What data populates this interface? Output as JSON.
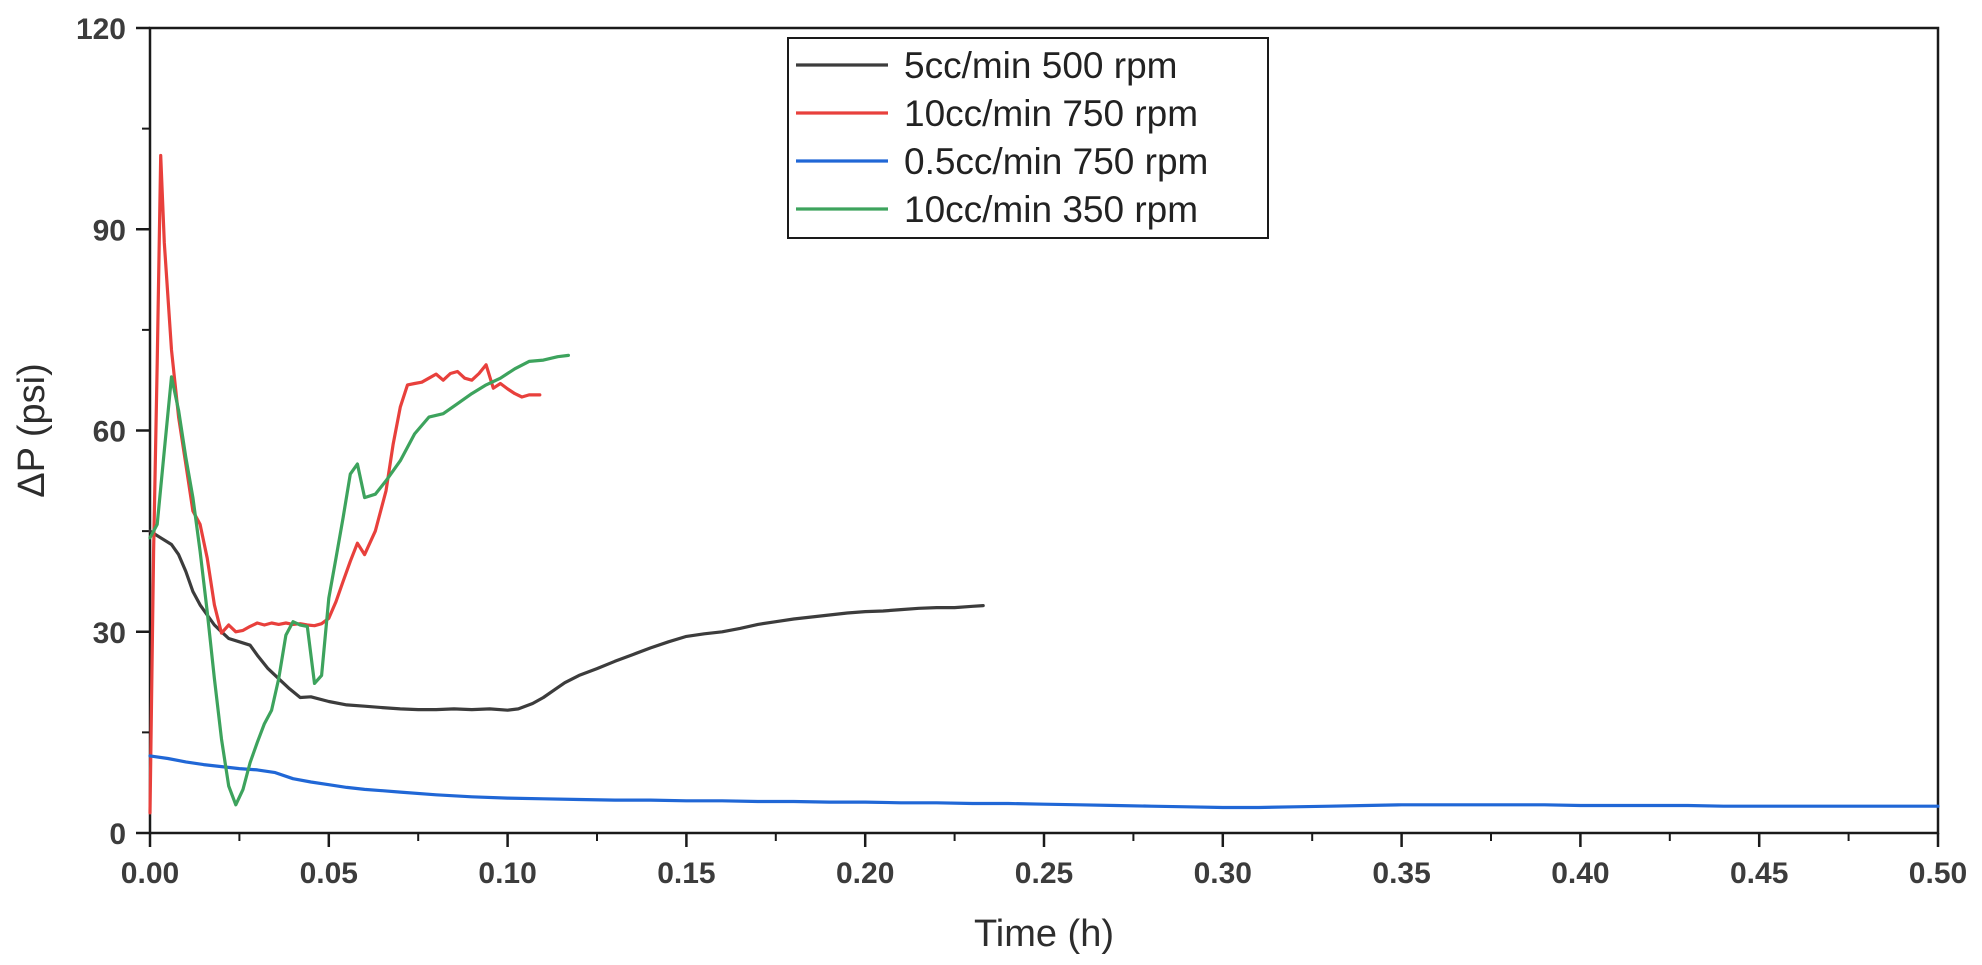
{
  "chart_data": {
    "type": "line",
    "title": "",
    "xlabel": "Time (h)",
    "ylabel": "ΔP (psi)",
    "xlim": [
      0,
      0.5
    ],
    "ylim": [
      0,
      120
    ],
    "x_ticks": [
      "0.00",
      "0.05",
      "0.10",
      "0.15",
      "0.20",
      "0.25",
      "0.30",
      "0.35",
      "0.40",
      "0.45",
      "0.50"
    ],
    "y_ticks": [
      "0",
      "30",
      "60",
      "90",
      "120"
    ],
    "grid": false,
    "legend_position": "top-center",
    "series": [
      {
        "name": "5cc/min 500 rpm",
        "color": "#3c3c3c",
        "points": [
          [
            0.0,
            45
          ],
          [
            0.003,
            44
          ],
          [
            0.006,
            43
          ],
          [
            0.008,
            41.5
          ],
          [
            0.01,
            39
          ],
          [
            0.012,
            36
          ],
          [
            0.014,
            34
          ],
          [
            0.016,
            32.5
          ],
          [
            0.018,
            31
          ],
          [
            0.02,
            30
          ],
          [
            0.022,
            29
          ],
          [
            0.025,
            28.5
          ],
          [
            0.028,
            28
          ],
          [
            0.03,
            26.5
          ],
          [
            0.033,
            24.5
          ],
          [
            0.036,
            23
          ],
          [
            0.039,
            21.5
          ],
          [
            0.042,
            20.2
          ],
          [
            0.045,
            20.3
          ],
          [
            0.05,
            19.6
          ],
          [
            0.055,
            19.1
          ],
          [
            0.06,
            18.9
          ],
          [
            0.065,
            18.7
          ],
          [
            0.07,
            18.5
          ],
          [
            0.075,
            18.4
          ],
          [
            0.08,
            18.4
          ],
          [
            0.085,
            18.5
          ],
          [
            0.09,
            18.4
          ],
          [
            0.095,
            18.5
          ],
          [
            0.1,
            18.3
          ],
          [
            0.103,
            18.5
          ],
          [
            0.107,
            19.3
          ],
          [
            0.11,
            20.2
          ],
          [
            0.113,
            21.3
          ],
          [
            0.116,
            22.4
          ],
          [
            0.12,
            23.5
          ],
          [
            0.125,
            24.5
          ],
          [
            0.13,
            25.6
          ],
          [
            0.135,
            26.6
          ],
          [
            0.14,
            27.6
          ],
          [
            0.145,
            28.5
          ],
          [
            0.15,
            29.3
          ],
          [
            0.155,
            29.7
          ],
          [
            0.16,
            30.0
          ],
          [
            0.165,
            30.5
          ],
          [
            0.17,
            31.1
          ],
          [
            0.175,
            31.5
          ],
          [
            0.18,
            31.9
          ],
          [
            0.185,
            32.2
          ],
          [
            0.19,
            32.5
          ],
          [
            0.195,
            32.8
          ],
          [
            0.2,
            33.0
          ],
          [
            0.205,
            33.1
          ],
          [
            0.21,
            33.3
          ],
          [
            0.215,
            33.5
          ],
          [
            0.22,
            33.6
          ],
          [
            0.225,
            33.6
          ],
          [
            0.23,
            33.8
          ],
          [
            0.233,
            33.9
          ]
        ]
      },
      {
        "name": "10cc/min 750 rpm",
        "color": "#e8403c",
        "points": [
          [
            0.0,
            3
          ],
          [
            0.001,
            42
          ],
          [
            0.002,
            70
          ],
          [
            0.003,
            101
          ],
          [
            0.004,
            88
          ],
          [
            0.006,
            72
          ],
          [
            0.008,
            62
          ],
          [
            0.01,
            55
          ],
          [
            0.012,
            48
          ],
          [
            0.014,
            46
          ],
          [
            0.016,
            41
          ],
          [
            0.018,
            34
          ],
          [
            0.02,
            29.8
          ],
          [
            0.022,
            31
          ],
          [
            0.024,
            30
          ],
          [
            0.026,
            30.2
          ],
          [
            0.028,
            30.8
          ],
          [
            0.03,
            31.3
          ],
          [
            0.032,
            31
          ],
          [
            0.034,
            31.3
          ],
          [
            0.036,
            31.1
          ],
          [
            0.038,
            31.3
          ],
          [
            0.04,
            31.1
          ],
          [
            0.042,
            31.2
          ],
          [
            0.044,
            31.0
          ],
          [
            0.046,
            30.9
          ],
          [
            0.048,
            31.2
          ],
          [
            0.05,
            32.0
          ],
          [
            0.052,
            34.5
          ],
          [
            0.054,
            37.5
          ],
          [
            0.056,
            40.5
          ],
          [
            0.058,
            43.2
          ],
          [
            0.06,
            41.5
          ],
          [
            0.063,
            45
          ],
          [
            0.066,
            51
          ],
          [
            0.068,
            58
          ],
          [
            0.07,
            63.5
          ],
          [
            0.072,
            66.8
          ],
          [
            0.074,
            67.0
          ],
          [
            0.076,
            67.2
          ],
          [
            0.078,
            67.8
          ],
          [
            0.08,
            68.4
          ],
          [
            0.082,
            67.5
          ],
          [
            0.084,
            68.5
          ],
          [
            0.086,
            68.8
          ],
          [
            0.088,
            67.8
          ],
          [
            0.09,
            67.5
          ],
          [
            0.092,
            68.5
          ],
          [
            0.094,
            69.8
          ],
          [
            0.096,
            66.3
          ],
          [
            0.098,
            67.0
          ],
          [
            0.1,
            66.2
          ],
          [
            0.102,
            65.5
          ],
          [
            0.104,
            65.0
          ],
          [
            0.106,
            65.3
          ],
          [
            0.109,
            65.3
          ]
        ]
      },
      {
        "name": "0.5cc/min 750 rpm",
        "color": "#2067d6",
        "points": [
          [
            0.0,
            11.5
          ],
          [
            0.005,
            11.1
          ],
          [
            0.01,
            10.6
          ],
          [
            0.015,
            10.2
          ],
          [
            0.02,
            9.9
          ],
          [
            0.025,
            9.6
          ],
          [
            0.03,
            9.4
          ],
          [
            0.035,
            9.0
          ],
          [
            0.04,
            8.1
          ],
          [
            0.045,
            7.6
          ],
          [
            0.05,
            7.2
          ],
          [
            0.055,
            6.8
          ],
          [
            0.06,
            6.5
          ],
          [
            0.065,
            6.3
          ],
          [
            0.07,
            6.1
          ],
          [
            0.08,
            5.7
          ],
          [
            0.09,
            5.4
          ],
          [
            0.1,
            5.2
          ],
          [
            0.11,
            5.1
          ],
          [
            0.12,
            5.0
          ],
          [
            0.13,
            4.9
          ],
          [
            0.14,
            4.9
          ],
          [
            0.15,
            4.8
          ],
          [
            0.16,
            4.8
          ],
          [
            0.17,
            4.7
          ],
          [
            0.18,
            4.7
          ],
          [
            0.19,
            4.6
          ],
          [
            0.2,
            4.6
          ],
          [
            0.21,
            4.5
          ],
          [
            0.22,
            4.5
          ],
          [
            0.23,
            4.4
          ],
          [
            0.24,
            4.4
          ],
          [
            0.25,
            4.3
          ],
          [
            0.26,
            4.2
          ],
          [
            0.27,
            4.1
          ],
          [
            0.28,
            4.0
          ],
          [
            0.29,
            3.9
          ],
          [
            0.3,
            3.8
          ],
          [
            0.31,
            3.8
          ],
          [
            0.32,
            3.9
          ],
          [
            0.33,
            4.0
          ],
          [
            0.34,
            4.1
          ],
          [
            0.35,
            4.2
          ],
          [
            0.36,
            4.2
          ],
          [
            0.37,
            4.2
          ],
          [
            0.38,
            4.2
          ],
          [
            0.39,
            4.2
          ],
          [
            0.4,
            4.1
          ],
          [
            0.41,
            4.1
          ],
          [
            0.42,
            4.1
          ],
          [
            0.43,
            4.1
          ],
          [
            0.44,
            4.0
          ],
          [
            0.45,
            4.0
          ],
          [
            0.46,
            4.0
          ],
          [
            0.47,
            4.0
          ],
          [
            0.48,
            4.0
          ],
          [
            0.49,
            4.0
          ],
          [
            0.5,
            4.0
          ]
        ]
      },
      {
        "name": "10cc/min 350 rpm",
        "color": "#3da35d",
        "points": [
          [
            0.0,
            44
          ],
          [
            0.002,
            46
          ],
          [
            0.004,
            57
          ],
          [
            0.006,
            68
          ],
          [
            0.008,
            63
          ],
          [
            0.01,
            56
          ],
          [
            0.012,
            50
          ],
          [
            0.014,
            42
          ],
          [
            0.016,
            33
          ],
          [
            0.018,
            23
          ],
          [
            0.02,
            14
          ],
          [
            0.022,
            7
          ],
          [
            0.024,
            4.2
          ],
          [
            0.026,
            6.5
          ],
          [
            0.028,
            10.5
          ],
          [
            0.03,
            13.5
          ],
          [
            0.032,
            16.3
          ],
          [
            0.034,
            18.3
          ],
          [
            0.036,
            23
          ],
          [
            0.038,
            29.5
          ],
          [
            0.04,
            31.5
          ],
          [
            0.042,
            31.0
          ],
          [
            0.044,
            30.8
          ],
          [
            0.046,
            22.3
          ],
          [
            0.048,
            23.5
          ],
          [
            0.05,
            35
          ],
          [
            0.052,
            41
          ],
          [
            0.054,
            47
          ],
          [
            0.056,
            53.5
          ],
          [
            0.058,
            55
          ],
          [
            0.06,
            50
          ],
          [
            0.063,
            50.5
          ],
          [
            0.066,
            52.5
          ],
          [
            0.07,
            55.5
          ],
          [
            0.074,
            59.5
          ],
          [
            0.078,
            62
          ],
          [
            0.082,
            62.5
          ],
          [
            0.086,
            64
          ],
          [
            0.09,
            65.5
          ],
          [
            0.094,
            66.8
          ],
          [
            0.098,
            67.8
          ],
          [
            0.102,
            69.2
          ],
          [
            0.106,
            70.3
          ],
          [
            0.11,
            70.5
          ],
          [
            0.114,
            71.0
          ],
          [
            0.117,
            71.2
          ]
        ]
      }
    ]
  }
}
